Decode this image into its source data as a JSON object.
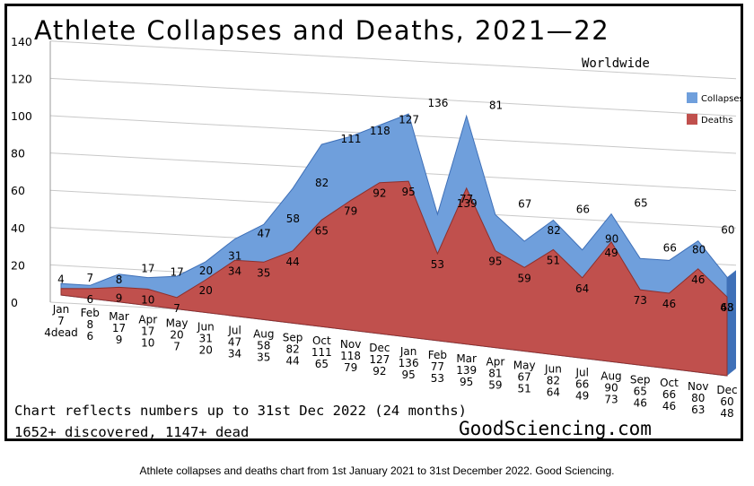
{
  "title": "Athlete Collapses and Deaths, 2021—22",
  "subtitle": "Worldwide",
  "notes": [
    "Chart reflects numbers up to 31st Dec 2022 (24 months)",
    "1652+ discovered, 1147+ dead"
  ],
  "brand": "GoodSciencing.com",
  "caption": "Athlete collapses and deaths chart from 1st January 2021 to 31st December 2022. Good Sciencing.",
  "colors": {
    "collapses": "#6f9fdc",
    "deaths": "#c0504d",
    "collapses_dark": "#3f70b8",
    "deaths_dark": "#8e2f2c"
  },
  "chart_data": {
    "type": "area",
    "title": "Athlete Collapses and Deaths, 2021—22",
    "subtitle": "Worldwide",
    "categories": [
      "Jan",
      "Feb",
      "Mar",
      "Apr",
      "May",
      "Jun",
      "Jul",
      "Aug",
      "Sep",
      "Oct",
      "Nov",
      "Dec",
      "Jan",
      "Feb",
      "Mar",
      "Apr",
      "May",
      "Jun",
      "Jul",
      "Aug",
      "Sep",
      "Oct",
      "Nov",
      "Dec"
    ],
    "series": [
      {
        "name": "Collapses",
        "values": [
          7,
          8,
          17,
          17,
          20,
          31,
          47,
          58,
          82,
          111,
          118,
          127,
          136,
          77,
          139,
          81,
          67,
          82,
          66,
          90,
          65,
          66,
          80,
          60
        ]
      },
      {
        "name": "Deaths",
        "values": [
          4,
          6,
          9,
          10,
          7,
          20,
          34,
          35,
          44,
          65,
          79,
          92,
          95,
          53,
          95,
          59,
          51,
          64,
          49,
          73,
          46,
          46,
          63,
          48
        ]
      }
    ],
    "top_labels": [
      [
        "4",
        "7",
        "8",
        "17",
        "17",
        "20",
        "31",
        "47",
        "58",
        "82",
        "111",
        "118",
        "127",
        "136",
        "139",
        "81",
        "67",
        "82",
        "66",
        "90",
        "65",
        "66",
        "80",
        "60"
      ],
      [
        "6",
        "9",
        "10",
        "7",
        "20",
        "34",
        "35",
        "44",
        "65",
        "79",
        "92",
        "95",
        "53",
        "77",
        "95",
        "59",
        "51",
        "64",
        "49",
        "73",
        "46",
        "46",
        "63",
        "48"
      ]
    ],
    "x_label_rows": [
      [
        "Jan",
        "7",
        "4dead"
      ],
      [
        "Feb",
        "8",
        "6"
      ],
      [
        "Mar",
        "17",
        "9"
      ],
      [
        "Apr",
        "17",
        "10"
      ],
      [
        "May",
        "20",
        "7"
      ],
      [
        "Jun",
        "31",
        "20"
      ],
      [
        "Jul",
        "47",
        "34"
      ],
      [
        "Aug",
        "58",
        "35"
      ],
      [
        "Sep",
        "82",
        "44"
      ],
      [
        "Oct",
        "111",
        "65"
      ],
      [
        "Nov",
        "118",
        "79"
      ],
      [
        "Dec",
        "127",
        "92"
      ],
      [
        "Jan",
        "136",
        "95"
      ],
      [
        "Feb",
        "77",
        "53"
      ],
      [
        "Mar",
        "139",
        "95"
      ],
      [
        "Apr",
        "81",
        "59"
      ],
      [
        "May",
        "67",
        "51"
      ],
      [
        "Jun",
        "82",
        "64"
      ],
      [
        "Jul",
        "66",
        "49"
      ],
      [
        "Aug",
        "90",
        "73"
      ],
      [
        "Sep",
        "65",
        "46"
      ],
      [
        "Oct",
        "66",
        "46"
      ],
      [
        "Nov",
        "80",
        "63"
      ],
      [
        "Dec",
        "60",
        "48"
      ]
    ],
    "y_ticks": [
      "0",
      "20",
      "40",
      "60",
      "80",
      "100",
      "120",
      "140"
    ],
    "ylim": [
      0,
      140
    ],
    "legend": [
      "Collapses",
      "Deaths"
    ],
    "legend_position": "top-right",
    "grid": true
  }
}
